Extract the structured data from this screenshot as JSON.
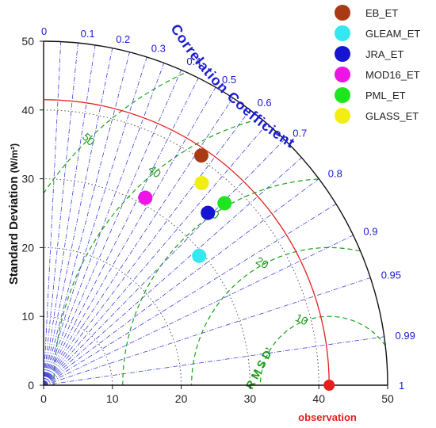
{
  "chart_data": {
    "type": "scatter",
    "subtype": "taylor-diagram",
    "ylabel": "Standard Deviation",
    "ylabel_unit": "(W/m²)",
    "std_ticks": [
      0,
      10,
      20,
      30,
      40,
      50
    ],
    "std_range": [
      0,
      50
    ],
    "correlation_title": "Correlation Coefficient",
    "correlation_ticks": [
      "0",
      "0.1",
      "0.2",
      "0.3",
      "0.4",
      "0.5",
      "0.6",
      "0.7",
      "0.8",
      "0.9",
      "0.95",
      "0.99",
      "1"
    ],
    "correlation_values": [
      0,
      0.1,
      0.2,
      0.3,
      0.4,
      0.5,
      0.6,
      0.7,
      0.8,
      0.9,
      0.95,
      0.99,
      1.0
    ],
    "rmsd_label": "R M S D’",
    "rmsd_levels": [
      10,
      20,
      30,
      40,
      50
    ],
    "rmsd_level_labels": [
      "10",
      "20",
      "30",
      "40",
      "50"
    ],
    "observation": {
      "label": "observation",
      "std": 41.5,
      "color": "#e61e1e"
    },
    "series": [
      {
        "name": "EB_ET",
        "color": "#a83a14",
        "std": 40.5,
        "corr": 0.566
      },
      {
        "name": "GLEAM_ET",
        "color": "#33e8ee",
        "std": 29.4,
        "corr": 0.769
      },
      {
        "name": "JRA_ET",
        "color": "#1414d2",
        "std": 34.6,
        "corr": 0.69
      },
      {
        "name": "MOD16_ET",
        "color": "#ee14e6",
        "std": 31.0,
        "corr": 0.477
      },
      {
        "name": "PML_ET",
        "color": "#1ee61e",
        "std": 37.3,
        "corr": 0.705
      },
      {
        "name": "GLASS_ET",
        "color": "#f2ee14",
        "std": 37.3,
        "corr": 0.616
      }
    ],
    "grid": true,
    "legend_position": "top-right"
  }
}
